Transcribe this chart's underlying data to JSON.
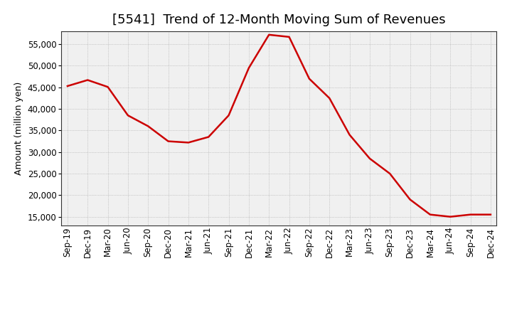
{
  "title": "[5541]  Trend of 12-Month Moving Sum of Revenues",
  "ylabel": "Amount (million yen)",
  "line_color": "#cc0000",
  "line_width": 1.8,
  "background_color": "#ffffff",
  "plot_bg_color": "#f0f0f0",
  "grid_color": "#888888",
  "xlabels": [
    "Sep-19",
    "Dec-19",
    "Mar-20",
    "Jun-20",
    "Sep-20",
    "Dec-20",
    "Mar-21",
    "Jun-21",
    "Sep-21",
    "Dec-21",
    "Mar-22",
    "Jun-22",
    "Sep-22",
    "Dec-22",
    "Mar-23",
    "Jun-23",
    "Sep-23",
    "Dec-23",
    "Mar-24",
    "Jun-24",
    "Sep-24",
    "Dec-24"
  ],
  "values": [
    45300,
    46700,
    45100,
    38500,
    36000,
    32500,
    32200,
    33500,
    38500,
    49500,
    57200,
    56700,
    47000,
    42500,
    34000,
    28500,
    25000,
    19000,
    15500,
    15000,
    15500,
    15500
  ],
  "ylim": [
    13000,
    58000
  ],
  "yticks": [
    15000,
    20000,
    25000,
    30000,
    35000,
    40000,
    45000,
    50000,
    55000
  ],
  "title_fontsize": 13,
  "axis_label_fontsize": 9,
  "tick_fontsize": 8.5
}
